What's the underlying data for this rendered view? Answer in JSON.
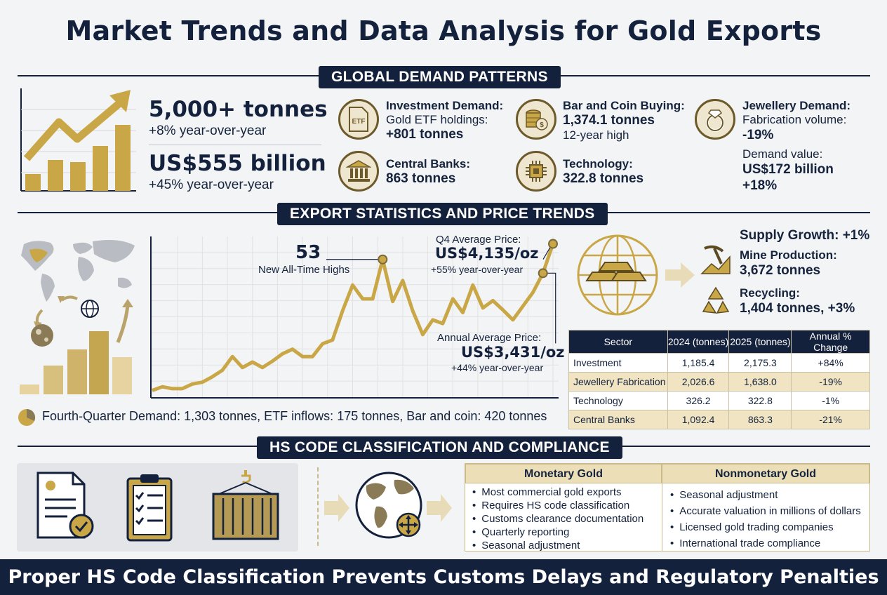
{
  "title": "Market Trends and Data Analysis for Gold Exports",
  "sections": {
    "demand": "GLOBAL DEMAND PATTERNS",
    "export": "EXPORT STATISTICS AND PRICE TRENDS",
    "hs": "HS CODE CLASSIFICATION AND COMPLIANCE"
  },
  "demand_summary": {
    "volume": "5,000+ tonnes",
    "volume_change": "+8% year-over-year",
    "value": "US$555 billion",
    "value_change": "+45% year-over-year"
  },
  "demand_categories": [
    {
      "icon": "etf-document-icon",
      "title": "Investment Demand:",
      "line1": "Gold ETF holdings:",
      "value": "+801 tonnes"
    },
    {
      "icon": "coin-stack-icon",
      "title": "Bar and Coin Buying:",
      "value": "1,374.1 tonnes",
      "line2": "12-year high"
    },
    {
      "icon": "ring-icon",
      "title": "Jewellery Demand:",
      "line1": "Fabrication volume:",
      "value": "-19%",
      "line3": "Demand value:",
      "value2": "US$172 billion",
      "value3": "+18%"
    },
    {
      "icon": "bank-icon",
      "title": "Central Banks:",
      "value": "863 tonnes"
    },
    {
      "icon": "chip-icon",
      "title": "Technology:",
      "value": "322.8 tonnes"
    }
  ],
  "price_chart": {
    "ath_count": "53",
    "ath_label": "New All-Time Highs",
    "q4_label": "Q4 Average Price:",
    "q4_value": "US$4,135/oz",
    "q4_change": "+55% year-over-year",
    "annual_label": "Annual Average Price:",
    "annual_value": "US$3,431/oz",
    "annual_change": "+44% year-over-year"
  },
  "chart_data": {
    "type": "line",
    "title": "",
    "xlabel": "",
    "ylabel": "",
    "grid": true,
    "series": [
      {
        "values": [
          0.05,
          0.09,
          0.07,
          0.07,
          0.12,
          0.14,
          0.2,
          0.27,
          0.42,
          0.3,
          0.36,
          0.3,
          0.37,
          0.45,
          0.5,
          0.42,
          0.42,
          0.56,
          0.6,
          0.92,
          1.2,
          1.05,
          1.05,
          1.48,
          1.02,
          1.25,
          0.92,
          0.66,
          0.82,
          0.78,
          1.05,
          0.9,
          1.2,
          0.95,
          1.03,
          0.93,
          0.82,
          0.97,
          1.12,
          1.33,
          1.65
        ]
      }
    ]
  },
  "supply": {
    "growth": "Supply Growth: +1%",
    "mine_label": "Mine Production:",
    "mine_value": "3,672 tonnes",
    "recycling_label": "Recycling:",
    "recycling_value": "1,404 tonnes, +3%"
  },
  "sector_table": {
    "headers": [
      "Sector",
      "2024 (tonnes)",
      "2025 (tonnes)",
      "Annual % Change"
    ],
    "rows": [
      [
        "Investment",
        "1,185.4",
        "2,175.3",
        "+84%"
      ],
      [
        "Jewellery Fabrication",
        "2,026.6",
        "1,638.0",
        "-19%"
      ],
      [
        "Technology",
        "326.2",
        "322.8",
        "-1%"
      ],
      [
        "Central Banks",
        "1,092.4",
        "863.3",
        "-21%"
      ]
    ]
  },
  "quarter_note": "Fourth-Quarter Demand: 1,303 tonnes, ETF inflows: 175 tonnes, Bar and coin: 420 tonnes",
  "classification": {
    "monetary_title": "Monetary Gold",
    "monetary_items": [
      "Most commercial gold exports",
      "Requires HS code classification",
      "Customs clearance documentation",
      "Quarterly reporting",
      "Seasonal adjustment"
    ],
    "nonmonetary_title": "Nonmonetary Gold",
    "nonmonetary_items": [
      "Seasonal adjustment",
      "Accurate valuation in millions of dollars",
      "Licensed gold trading companies",
      "International trade compliance"
    ]
  },
  "footer": "Proper HS Code Classification Prevents Customs Delays and Regulatory Penalties",
  "colors": {
    "navy": "#14213d",
    "gold": "#c9a646",
    "gold_light": "#e6d3a0",
    "cream": "#f0e4c3"
  }
}
